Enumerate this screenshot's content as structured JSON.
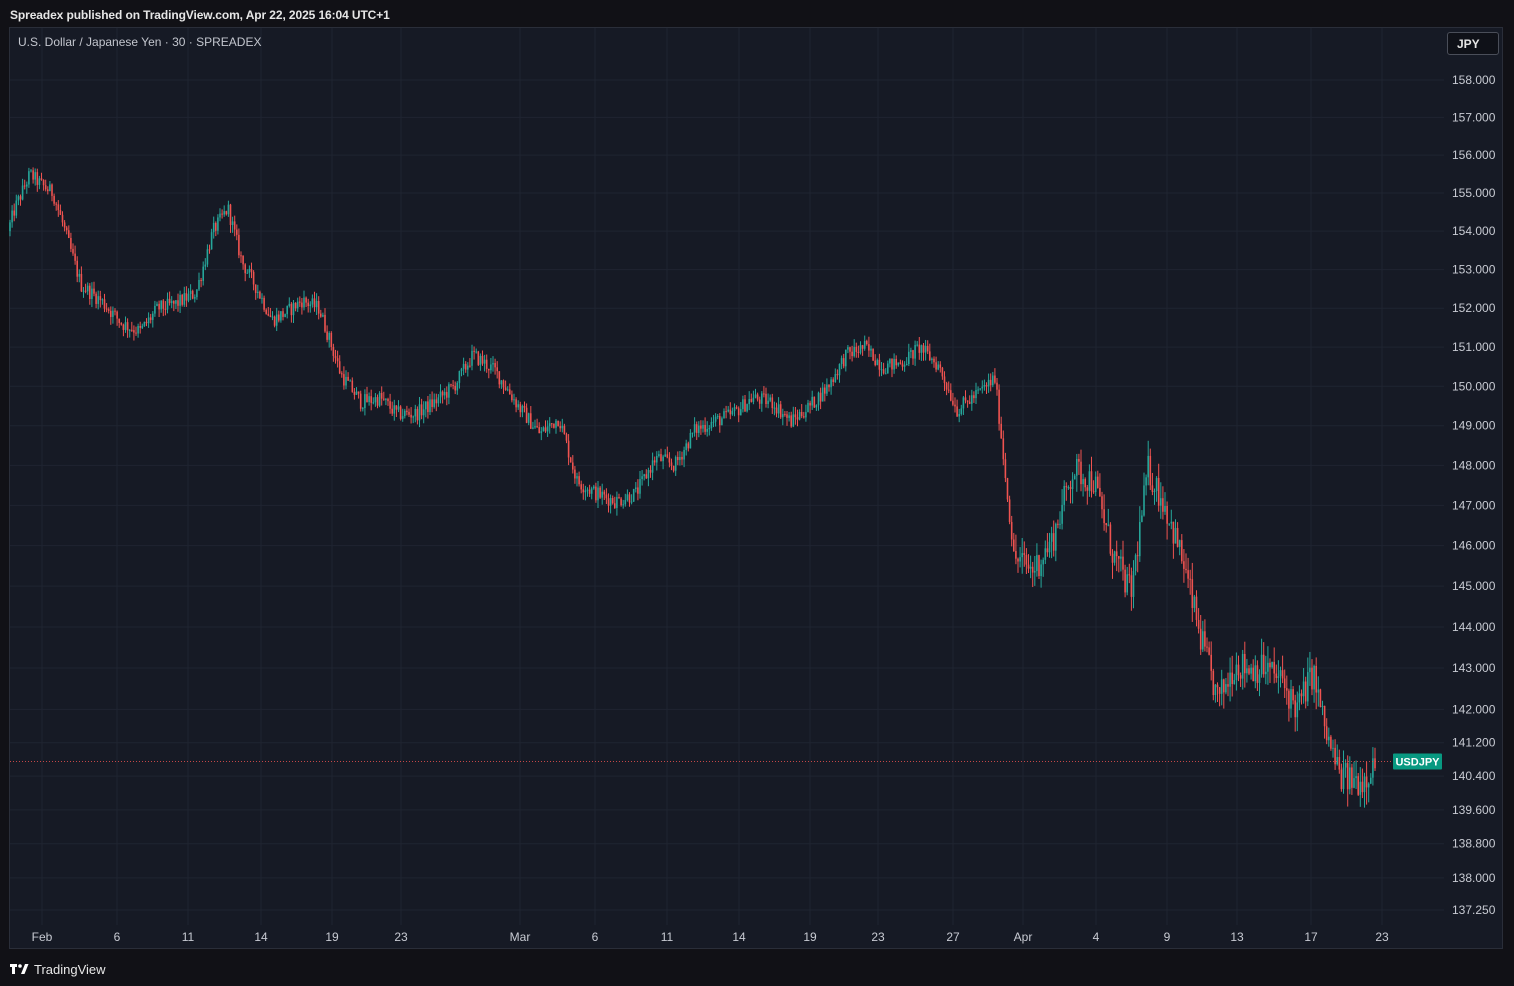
{
  "header": {
    "published": "Spreadex published on TradingView.com, Apr 22, 2025 16:04 UTC+1"
  },
  "chart": {
    "symbol_title": "U.S. Dollar / Japanese Yen · 30 · SPREADEX",
    "currency_button": "JPY",
    "last_price_tag": "USDJPY"
  },
  "footer": {
    "brand": "TradingView"
  },
  "colors": {
    "background": "#161a25",
    "grid": "#1f2431",
    "up": "#26a69a",
    "down": "#ef5350",
    "price_tag": "#089981"
  },
  "chart_data": {
    "type": "candlestick",
    "title": "U.S. Dollar / Japanese Yen · 30 · SPREADEX",
    "timeframe": "30",
    "x_ticks": [
      "Feb",
      "6",
      "11",
      "14",
      "19",
      "23",
      "Mar",
      "6",
      "11",
      "14",
      "19",
      "23",
      "27",
      "Apr",
      "4",
      "9",
      "13",
      "17",
      "23"
    ],
    "y_ticks": [
      "158.000",
      "157.000",
      "156.000",
      "155.000",
      "154.000",
      "153.000",
      "152.000",
      "151.000",
      "150.000",
      "149.000",
      "148.000",
      "147.000",
      "146.000",
      "145.000",
      "144.000",
      "143.000",
      "142.000",
      "141.200",
      "140.400",
      "139.600",
      "138.800",
      "138.000",
      "137.250"
    ],
    "y_scale": "log",
    "ylim": [
      136.9,
      159.4
    ],
    "last_price": 140.75,
    "grid": true,
    "series": [
      {
        "x": [
          "Jan 30",
          "Jan 31",
          "Feb 1",
          "Feb 2",
          "Feb 3",
          "Feb 4",
          "Feb 5",
          "Feb 6",
          "Feb 7",
          "Feb 8",
          "Feb 9",
          "Feb 10",
          "Feb 11",
          "Feb 12",
          "Feb 13",
          "Feb 14",
          "Feb 15",
          "Feb 16",
          "Feb 17",
          "Feb 18",
          "Feb 19",
          "Feb 20",
          "Feb 21",
          "Feb 22",
          "Feb 23",
          "Feb 24",
          "Feb 25",
          "Feb 26",
          "Feb 27",
          "Feb 28",
          "Mar 1",
          "Mar 2",
          "Mar 3",
          "Mar 4",
          "Mar 5",
          "Mar 6",
          "Mar 7",
          "Mar 8",
          "Mar 9",
          "Mar 10",
          "Mar 11",
          "Mar 12",
          "Mar 13",
          "Mar 14",
          "Mar 15",
          "Mar 16",
          "Mar 17",
          "Mar 18",
          "Mar 19",
          "Mar 20",
          "Mar 21",
          "Mar 22",
          "Mar 23",
          "Mar 24",
          "Mar 25",
          "Mar 26",
          "Mar 27",
          "Mar 28",
          "Mar 29",
          "Mar 30",
          "Mar 31",
          "Apr 1",
          "Apr 2",
          "Apr 3",
          "Apr 4",
          "Apr 5",
          "Apr 6",
          "Apr 7",
          "Apr 8",
          "Apr 9",
          "Apr 10",
          "Apr 11",
          "Apr 12",
          "Apr 13",
          "Apr 14",
          "Apr 15",
          "Apr 16",
          "Apr 17",
          "Apr 18",
          "Apr 19",
          "Apr 20",
          "Apr 21",
          "Apr 22"
        ],
        "values": [
          154.0,
          154.6,
          155.5,
          155.2,
          155.0,
          154.0,
          152.6,
          152.2,
          151.6,
          151.4,
          152.0,
          152.1,
          152.4,
          154.0,
          154.6,
          153.2,
          152.5,
          151.7,
          151.9,
          152.2,
          152.0,
          150.3,
          149.6,
          149.7,
          149.3,
          149.3,
          149.6,
          150.0,
          150.8,
          150.4,
          149.4,
          148.8,
          149.2,
          147.6,
          147.3,
          147.1,
          147.3,
          148.2,
          148.0,
          148.9,
          149.1,
          149.3,
          149.7,
          149.6,
          149.1,
          149.5,
          150.0,
          150.8,
          151.0,
          150.5,
          150.6,
          151.0,
          150.5,
          149.4,
          149.8,
          150.2,
          145.7,
          145.4,
          146.1,
          147.9,
          147.6,
          145.8,
          144.8,
          147.9,
          147.0,
          145.6,
          143.7,
          142.2,
          143.1,
          143.0,
          143.0,
          142.7,
          142.0,
          142.9,
          141.4,
          140.4,
          140.3,
          140.3,
          140.7,
          140.75,
          140.75,
          140.75,
          140.75
        ]
      }
    ]
  }
}
